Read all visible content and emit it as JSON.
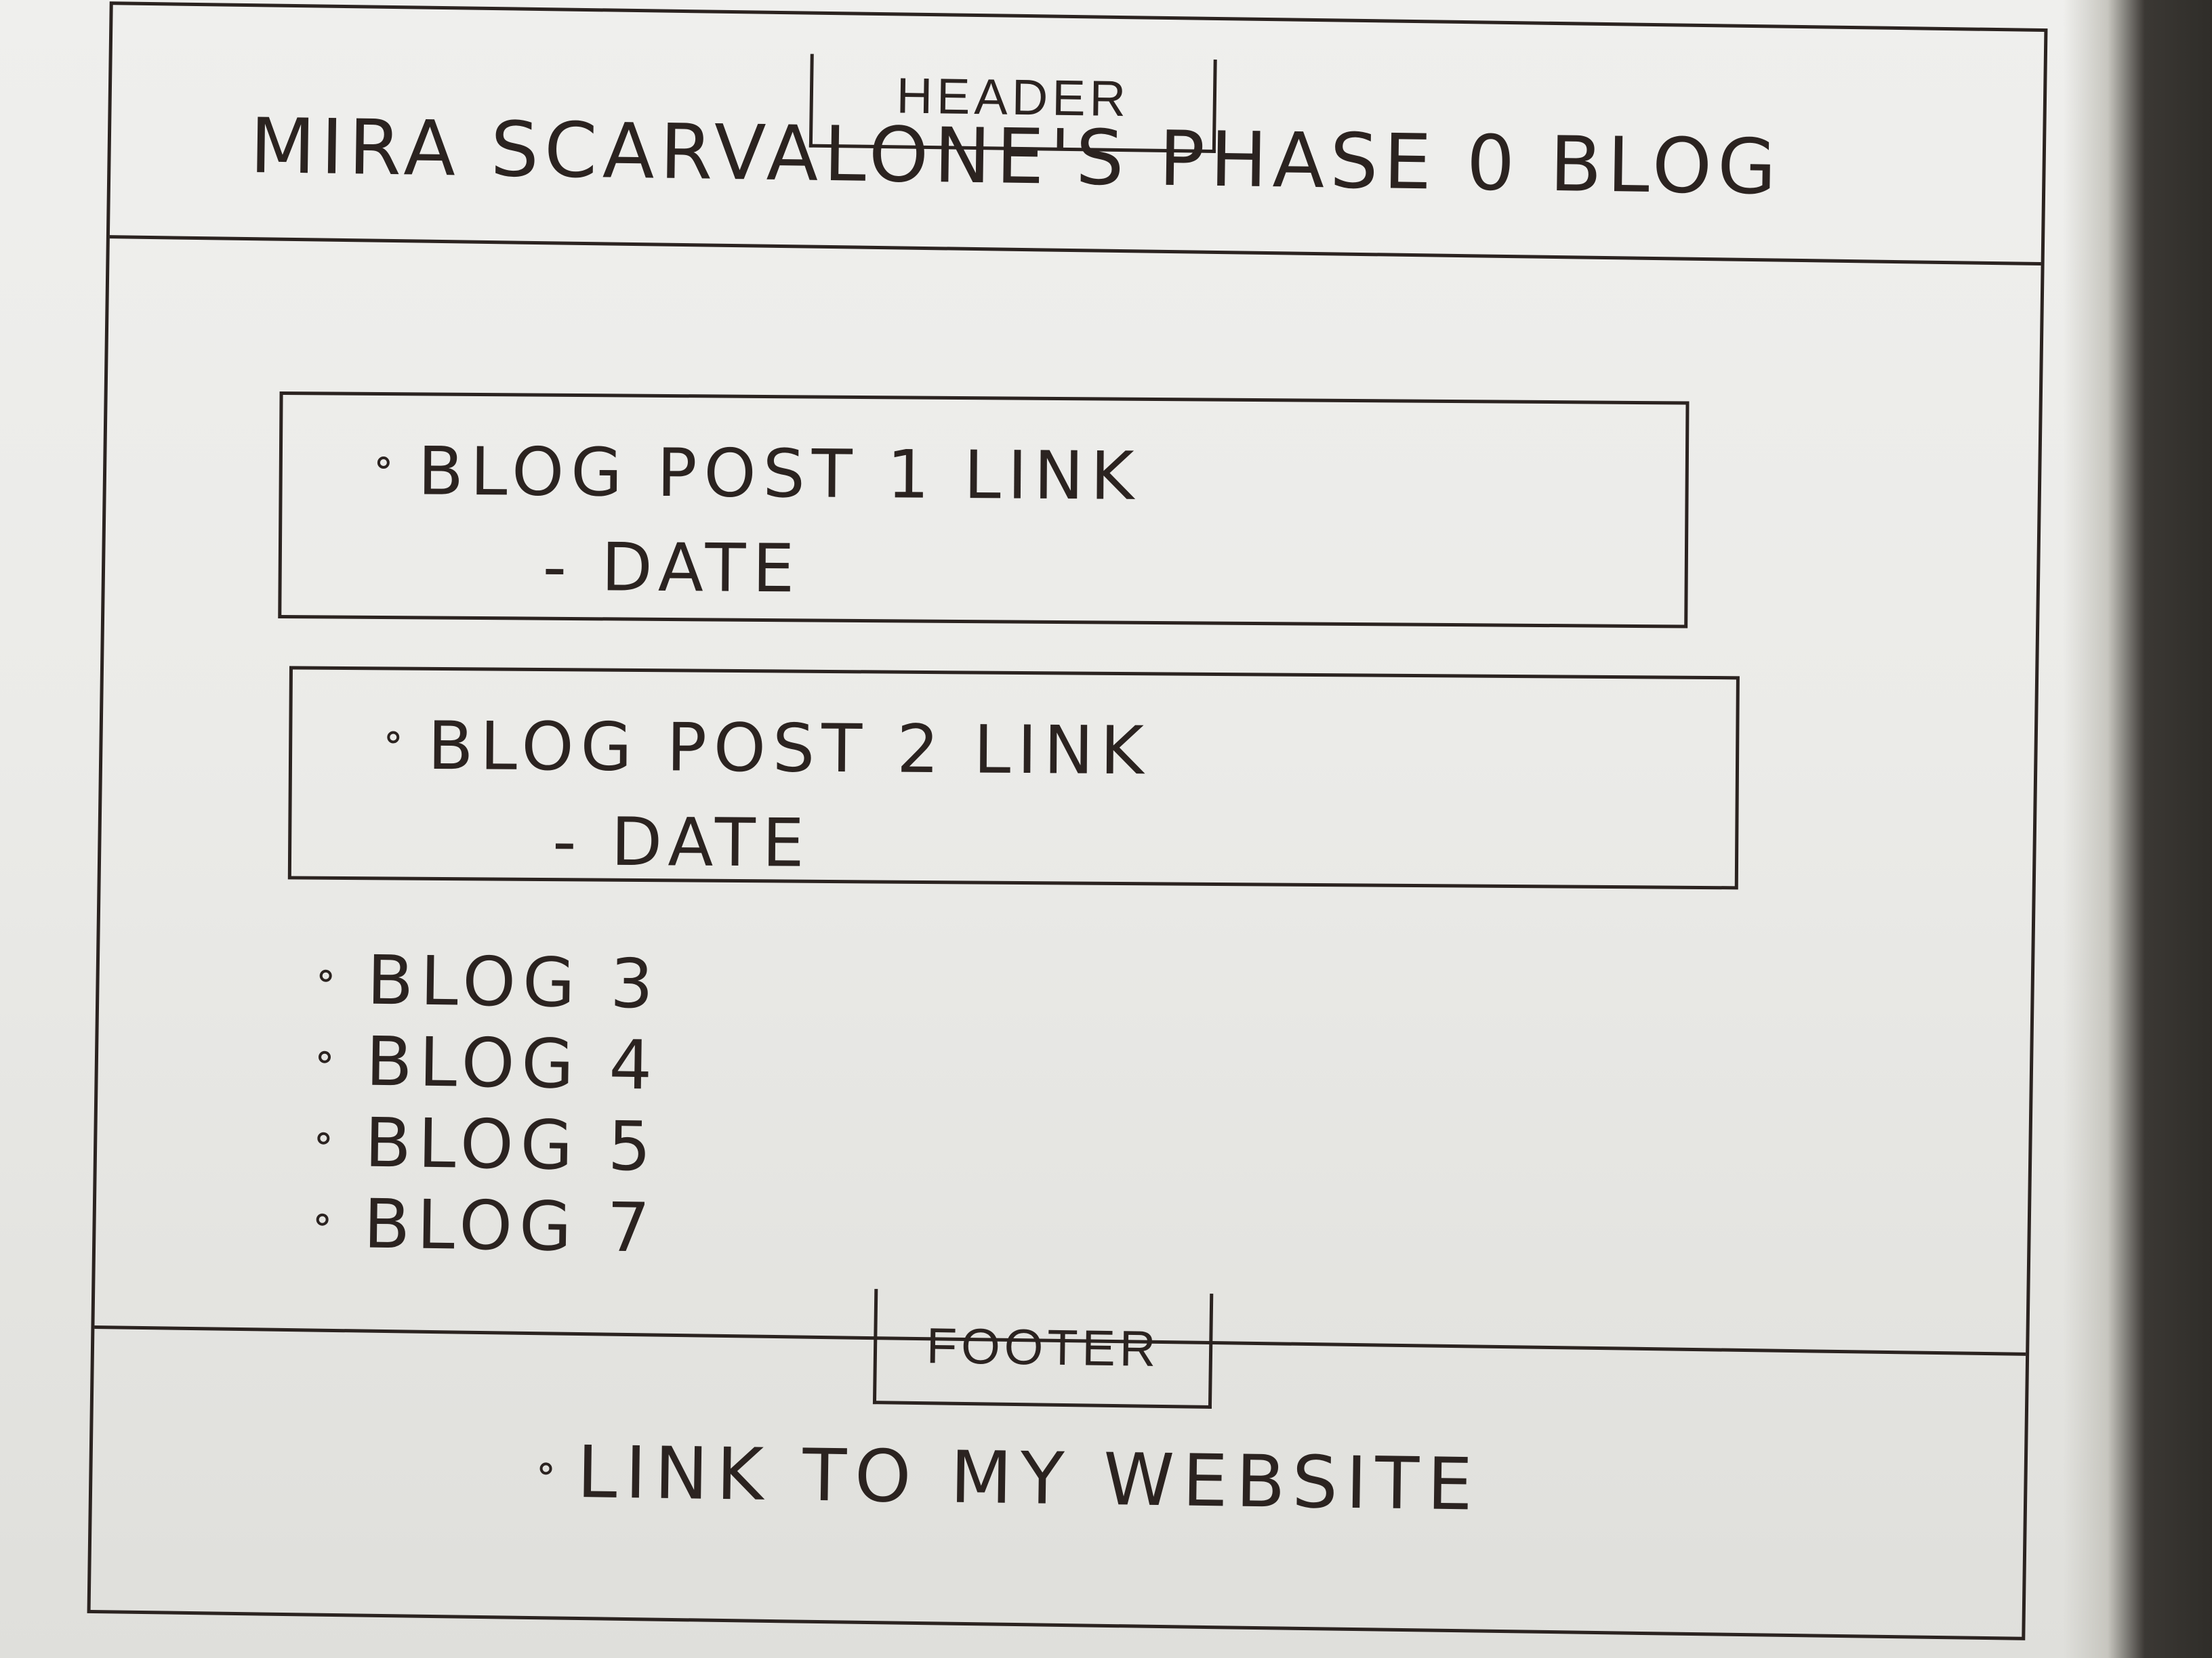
{
  "header": {
    "tag_label": "HEADER",
    "title": "MIRA SCARVALONE'S PHASE 0 BLOG"
  },
  "posts": [
    {
      "link_label": "BLOG POST 1 LINK",
      "date_label": "- DATE"
    },
    {
      "link_label": "BLOG POST 2 LINK",
      "date_label": "- DATE"
    }
  ],
  "blog_list": [
    {
      "label": "BLOG 3"
    },
    {
      "label": "BLOG 4"
    },
    {
      "label": "BLOG 5"
    },
    {
      "label": "BLOG 7"
    }
  ],
  "footer": {
    "tag_label": "FOOTER",
    "link_label": "LINK TO MY WEBSITE"
  }
}
